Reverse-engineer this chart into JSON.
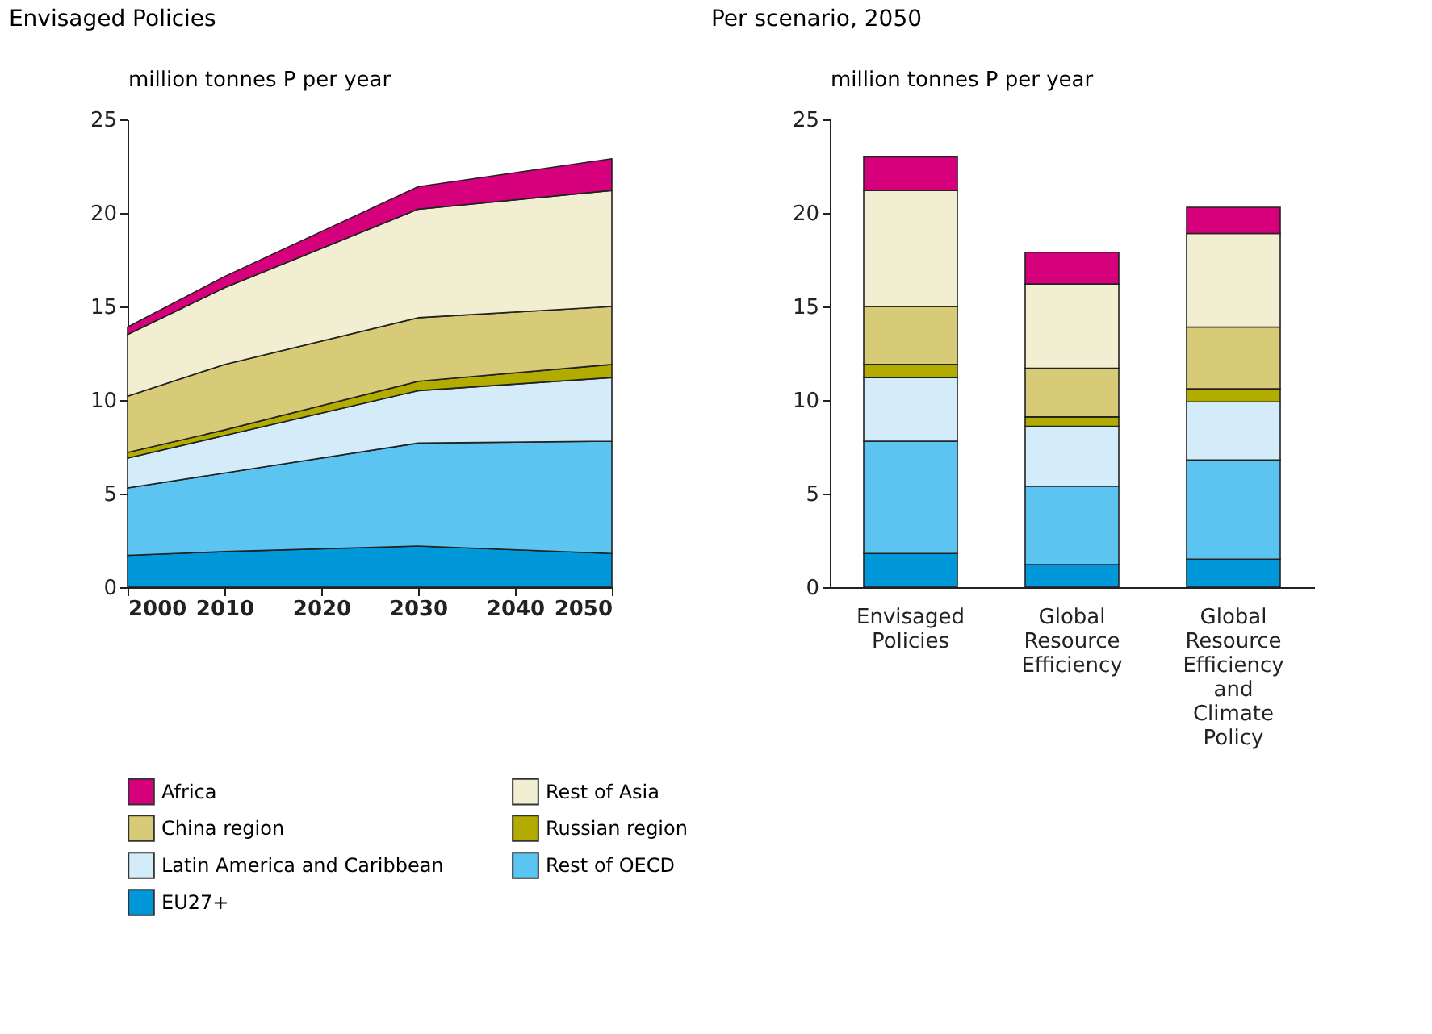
{
  "chart_data": [
    {
      "type": "area",
      "stacked": true,
      "title": "Envisaged Policies",
      "ylabel": "million tonnes P per year",
      "x": [
        2000,
        2010,
        2030,
        2050
      ],
      "xlim": [
        2000,
        2050
      ],
      "xticks": [
        2000,
        2010,
        2020,
        2030,
        2040,
        2050
      ],
      "ylim": [
        0,
        25
      ],
      "yticks": [
        0,
        5,
        10,
        15,
        20,
        25
      ],
      "grid": false,
      "legend": "bottom",
      "series": [
        {
          "name": "EU27+",
          "color": "#0098d8",
          "values": [
            1.7,
            1.9,
            2.2,
            1.8
          ]
        },
        {
          "name": "Rest of OECD",
          "color": "#5bc4f1",
          "values": [
            3.6,
            4.2,
            5.5,
            6.0
          ]
        },
        {
          "name": "Latin America and Caribbean",
          "color": "#d4ecfa",
          "values": [
            1.6,
            2.0,
            2.8,
            3.4
          ]
        },
        {
          "name": "Russian region",
          "color": "#b3ac00",
          "values": [
            0.3,
            0.3,
            0.5,
            0.7
          ]
        },
        {
          "name": "China region",
          "color": "#d7cb78",
          "values": [
            3.0,
            3.5,
            3.4,
            3.1
          ]
        },
        {
          "name": "Rest of Asia",
          "color": "#f2eed2",
          "values": [
            3.3,
            4.1,
            5.8,
            6.2
          ]
        },
        {
          "name": "Africa",
          "color": "#d6007c",
          "values": [
            0.4,
            0.6,
            1.2,
            1.7
          ]
        }
      ]
    },
    {
      "type": "bar",
      "stacked": true,
      "title": "Per scenario, 2050",
      "ylabel": "million tonnes P per year",
      "categories": [
        "Envisaged Policies",
        "Global Resource Efficiency",
        "Global Resource Efficiency and Climate Policy"
      ],
      "ylim": [
        0,
        25
      ],
      "yticks": [
        0,
        5,
        10,
        15,
        20,
        25
      ],
      "grid": false,
      "series": [
        {
          "name": "EU27+",
          "color": "#0098d8",
          "values": [
            1.8,
            1.2,
            1.5
          ]
        },
        {
          "name": "Rest of OECD",
          "color": "#5bc4f1",
          "values": [
            6.0,
            4.2,
            5.3
          ]
        },
        {
          "name": "Latin America and Caribbean",
          "color": "#d4ecfa",
          "values": [
            3.4,
            3.2,
            3.1
          ]
        },
        {
          "name": "Russian region",
          "color": "#b3ac00",
          "values": [
            0.7,
            0.5,
            0.7
          ]
        },
        {
          "name": "China region",
          "color": "#d7cb78",
          "values": [
            3.1,
            2.6,
            3.3
          ]
        },
        {
          "name": "Rest of Asia",
          "color": "#f2eed2",
          "values": [
            6.2,
            4.5,
            5.0
          ]
        },
        {
          "name": "Africa",
          "color": "#d6007c",
          "values": [
            1.8,
            1.7,
            1.4
          ]
        }
      ]
    }
  ]
}
